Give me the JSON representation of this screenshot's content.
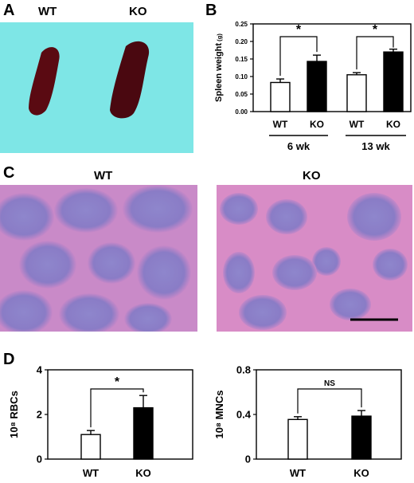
{
  "panels": {
    "a": {
      "letter": "A",
      "wt_label": "WT",
      "ko_label": "KO"
    },
    "b": {
      "letter": "B"
    },
    "c": {
      "letter": "C",
      "wt_label": "WT",
      "ko_label": "KO"
    },
    "d": {
      "letter": "D"
    }
  },
  "colors": {
    "background": "#7ee6e6",
    "spleen": "#5a0a12",
    "wt_bar": "#ffffff",
    "ko_bar": "#000000",
    "histo_pink": "#d98ac8",
    "histo_purple": "#8a83c8"
  },
  "chart_data": [
    {
      "type": "bar",
      "ylabel": "Spleen weight",
      "ylabel_unit": "(g)",
      "ylim": [
        0,
        0.25
      ],
      "yticks": [
        "0.00",
        "0.05",
        "0.10",
        "0.15",
        "0.20",
        "0.25"
      ],
      "categories": [
        "WT",
        "KO",
        "WT",
        "KO"
      ],
      "groups": [
        "6 wk",
        "13 wk"
      ],
      "values": [
        0.083,
        0.143,
        0.105,
        0.17
      ],
      "errors": [
        0.01,
        0.018,
        0.006,
        0.008
      ],
      "significance": [
        "*",
        "*"
      ]
    },
    {
      "type": "bar",
      "ylabel": "10⁸ RBCs",
      "ylim": [
        0,
        4
      ],
      "yticks": [
        "0",
        "2",
        "4"
      ],
      "categories": [
        "WT",
        "KO"
      ],
      "values": [
        1.1,
        2.3
      ],
      "errors": [
        0.18,
        0.55
      ],
      "significance": "*"
    },
    {
      "type": "bar",
      "ylabel": "10⁸ MNCs",
      "ylim": [
        0,
        0.8
      ],
      "yticks": [
        "0",
        "0.4",
        "0.8"
      ],
      "categories": [
        "WT",
        "KO"
      ],
      "values": [
        0.355,
        0.385
      ],
      "errors": [
        0.025,
        0.05
      ],
      "significance": "NS"
    }
  ]
}
